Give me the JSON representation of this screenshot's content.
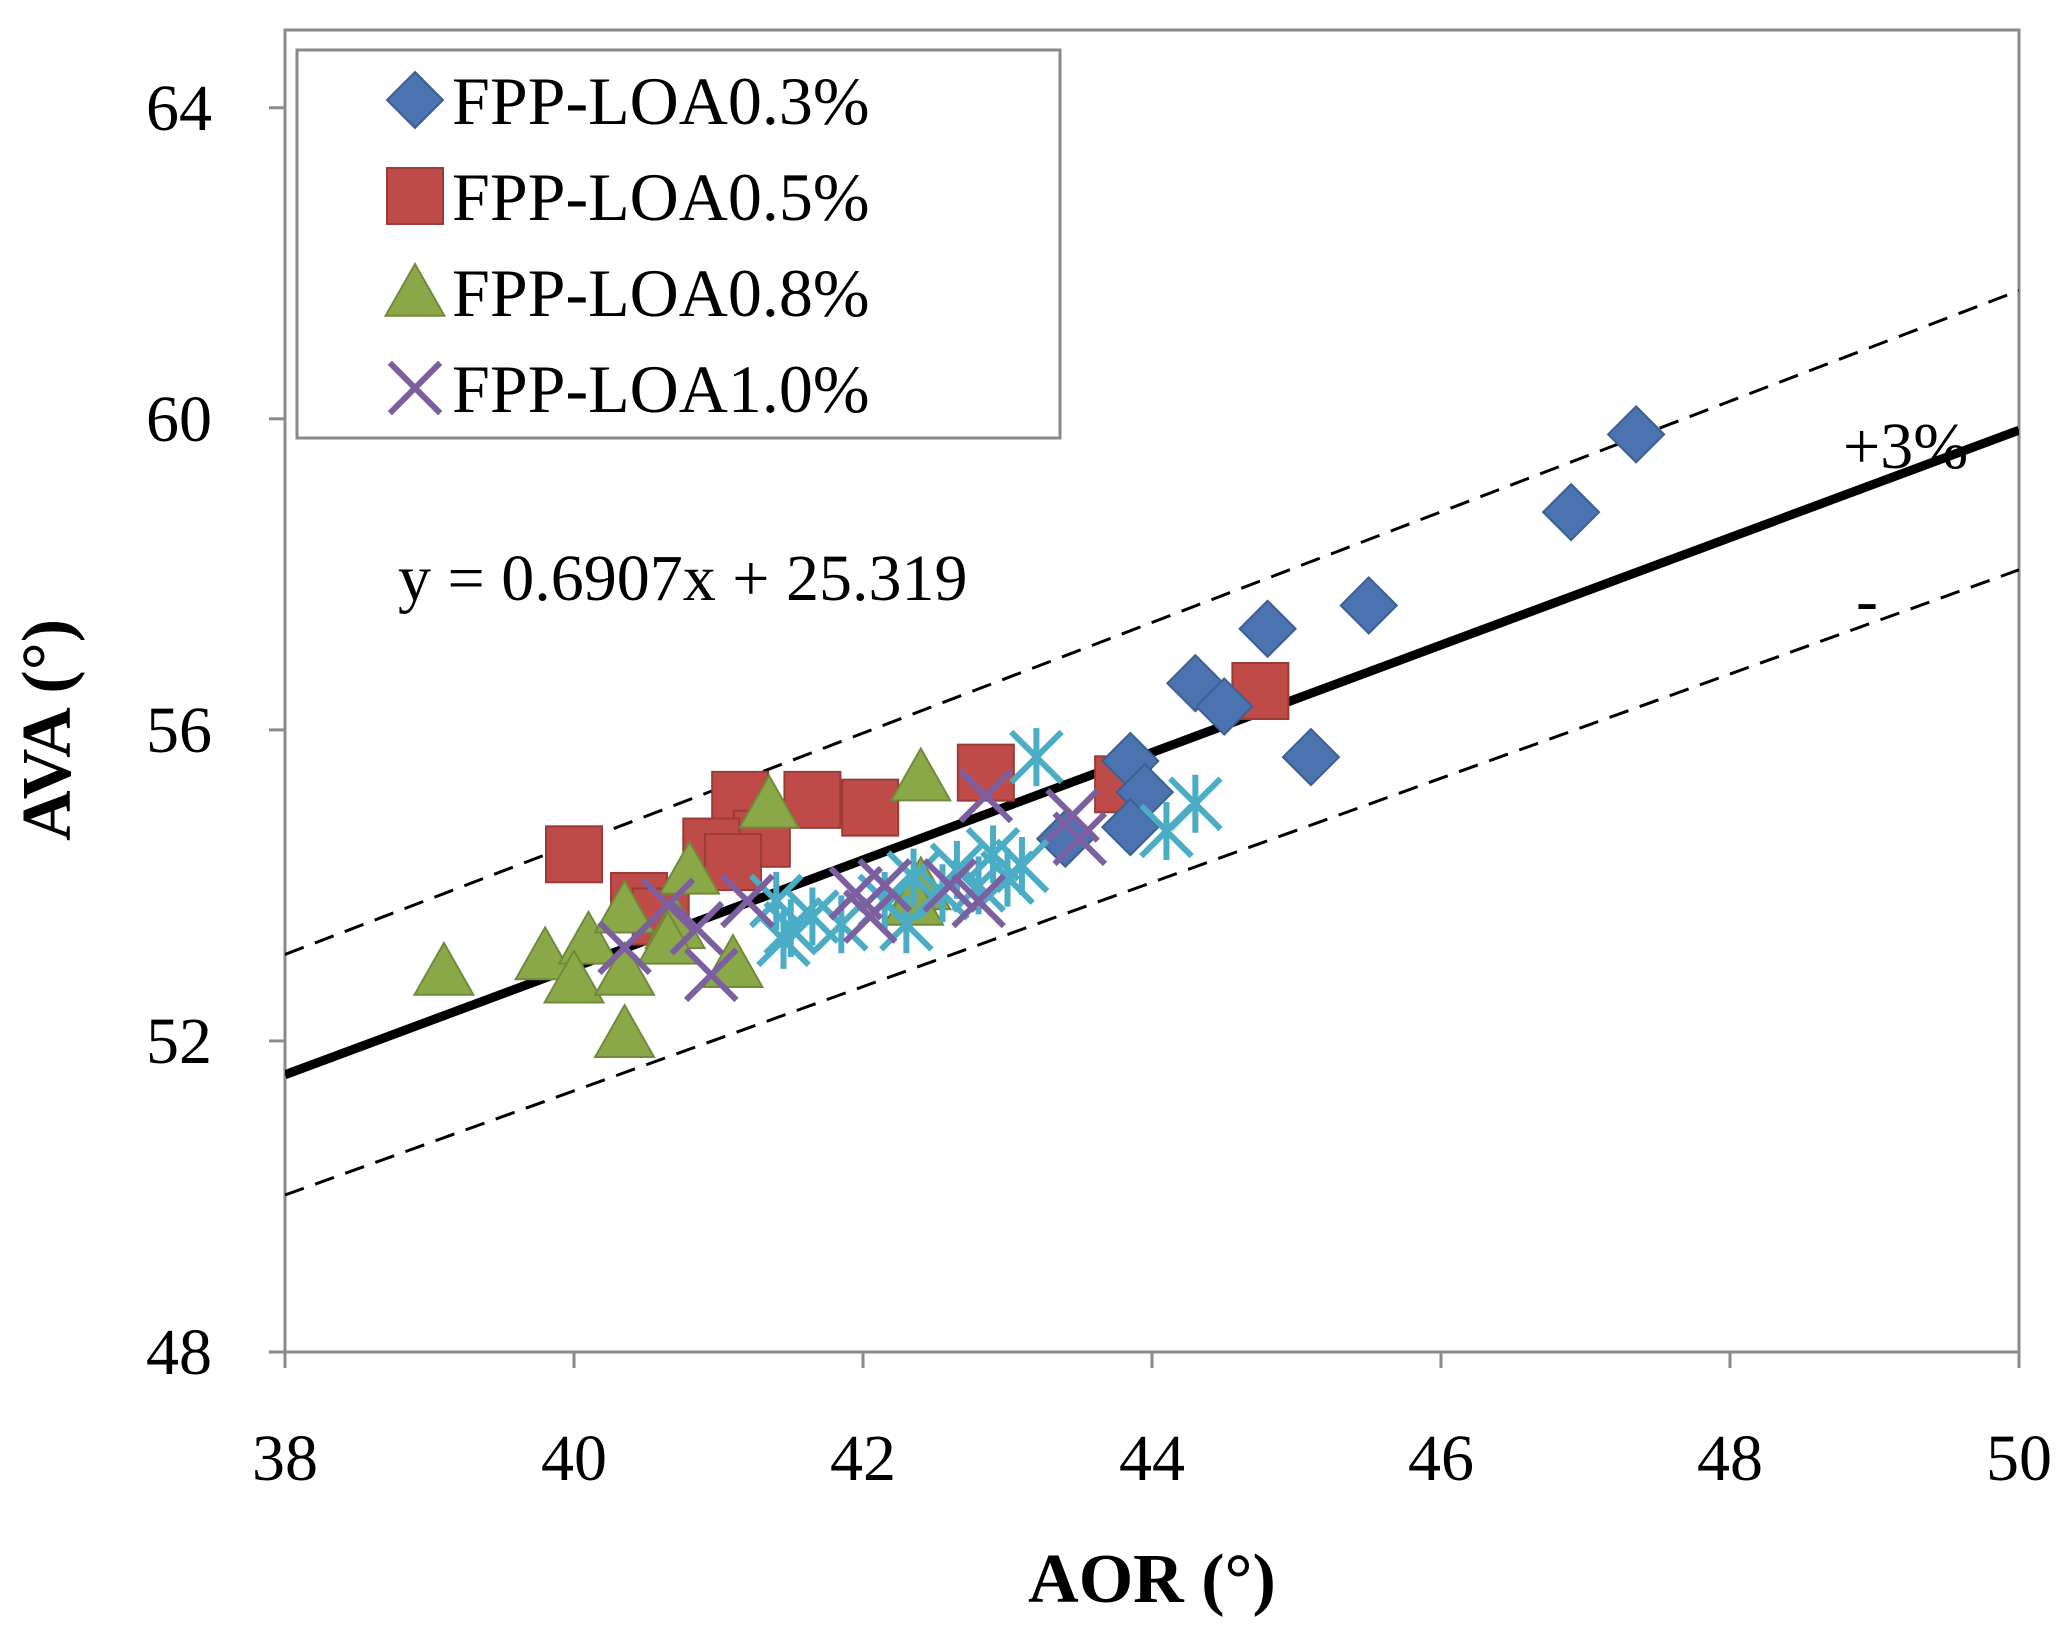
{
  "chart_data": {
    "type": "scatter",
    "xlabel": "AOR (°)",
    "ylabel": "AVA (°)",
    "xlim": [
      38,
      50
    ],
    "ylim": [
      48,
      65
    ],
    "x_ticks": [
      "38",
      "40",
      "42",
      "44",
      "46",
      "48",
      "50"
    ],
    "y_ticks": [
      "48",
      "52",
      "56",
      "60",
      "64"
    ],
    "x_tick_values": [
      38,
      40,
      42,
      44,
      46,
      48,
      50
    ],
    "y_tick_values": [
      48,
      52,
      56,
      60,
      64
    ],
    "legend_position": "top-left",
    "series": [
      {
        "name": "FPP-LOA0.3%",
        "marker": "diamond",
        "color": "#4A73B0",
        "in_legend": true,
        "points": [
          [
            47.35,
            59.8
          ],
          [
            46.9,
            58.8
          ],
          [
            45.5,
            57.6
          ],
          [
            44.8,
            57.3
          ],
          [
            44.3,
            56.6
          ],
          [
            44.5,
            56.3
          ],
          [
            45.1,
            55.65
          ],
          [
            43.85,
            55.6
          ],
          [
            43.95,
            55.2
          ],
          [
            43.85,
            54.75
          ],
          [
            43.4,
            54.6
          ]
        ]
      },
      {
        "name": "FPP-LOA0.5%",
        "marker": "square",
        "color": "#BE4B48",
        "in_legend": true,
        "points": [
          [
            44.75,
            56.5
          ],
          [
            42.85,
            55.45
          ],
          [
            43.8,
            55.3
          ],
          [
            41.15,
            55.1
          ],
          [
            41.65,
            55.1
          ],
          [
            42.05,
            55.0
          ],
          [
            41.3,
            54.6
          ],
          [
            40.95,
            54.5
          ],
          [
            41.1,
            54.3
          ],
          [
            40.0,
            54.4
          ],
          [
            40.45,
            53.8
          ],
          [
            40.6,
            53.6
          ]
        ]
      },
      {
        "name": "FPP-LOA0.8%",
        "marker": "triangle",
        "color": "#8BA848",
        "in_legend": true,
        "points": [
          [
            39.1,
            52.9
          ],
          [
            39.8,
            53.1
          ],
          [
            40.1,
            53.3
          ],
          [
            40.35,
            53.7
          ],
          [
            40.0,
            52.8
          ],
          [
            40.35,
            52.9
          ],
          [
            40.35,
            52.1
          ],
          [
            40.8,
            54.2
          ],
          [
            40.7,
            53.5
          ],
          [
            40.65,
            53.3
          ],
          [
            41.1,
            53.0
          ],
          [
            41.35,
            55.05
          ],
          [
            42.4,
            55.4
          ],
          [
            42.4,
            54.0
          ],
          [
            42.35,
            53.8
          ]
        ]
      },
      {
        "name": "FPP-LOA1.0%",
        "marker": "x",
        "color": "#7B5FA0",
        "in_legend": true,
        "points": [
          [
            40.35,
            53.2
          ],
          [
            40.65,
            53.75
          ],
          [
            40.95,
            52.85
          ],
          [
            40.85,
            53.45
          ],
          [
            41.2,
            53.8
          ],
          [
            41.95,
            53.9
          ],
          [
            42.05,
            53.6
          ],
          [
            42.15,
            54.0
          ],
          [
            42.6,
            54.0
          ],
          [
            42.8,
            53.8
          ],
          [
            42.85,
            55.15
          ],
          [
            43.45,
            54.9
          ],
          [
            43.5,
            54.6
          ]
        ]
      },
      {
        "name": "",
        "marker": "asterisk",
        "color": "#4AACC5",
        "in_legend": false,
        "points": [
          [
            41.4,
            53.8
          ],
          [
            41.45,
            53.3
          ],
          [
            41.5,
            53.45
          ],
          [
            41.65,
            53.6
          ],
          [
            41.85,
            53.5
          ],
          [
            42.15,
            53.8
          ],
          [
            42.3,
            53.5
          ],
          [
            42.35,
            54.1
          ],
          [
            42.55,
            53.9
          ],
          [
            42.65,
            54.2
          ],
          [
            42.8,
            54.0
          ],
          [
            42.9,
            54.4
          ],
          [
            43.0,
            54.1
          ],
          [
            43.1,
            54.25
          ],
          [
            43.2,
            55.65
          ],
          [
            44.1,
            54.7
          ],
          [
            44.3,
            55.05
          ]
        ]
      }
    ],
    "trendline": {
      "equation": "y = 0.6907x + 25.319",
      "slope": 0.6907,
      "intercept": 25.319,
      "x_range": [
        38,
        50
      ]
    },
    "bounds": {
      "upper_label": "+3%",
      "lower_label": "-",
      "percent": 3
    }
  }
}
